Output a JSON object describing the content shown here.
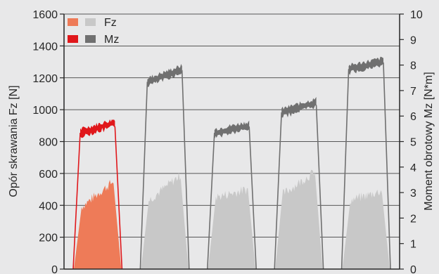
{
  "chart_data": {
    "type": "area",
    "title": "",
    "ylabel_left": "Opór skrawania Fz [N]",
    "ylabel_right": "Moment obrotowy Mz [N*m]",
    "ylim_left": [
      0,
      1600
    ],
    "ylim_right": [
      0,
      10
    ],
    "yticks_left": [
      "0",
      "200",
      "400",
      "600",
      "800",
      "1000",
      "1200",
      "1400",
      "1600"
    ],
    "yticks_right": [
      "0",
      "1",
      "2",
      "3",
      "4",
      "5",
      "6",
      "7",
      "8",
      "9",
      "10"
    ],
    "grid": "horizontal",
    "legend_position": "top-left",
    "legend": [
      {
        "label": "Fz",
        "swatch_colors": [
          "#ee7b58",
          "#c8c8c8"
        ]
      },
      {
        "label": "Mz",
        "swatch_colors": [
          "#e0171b",
          "#707070"
        ]
      }
    ],
    "tests": [
      {
        "highlight": true,
        "fz_range_N": [
          360,
          520
        ],
        "mz_range_Nm": [
          5.4,
          5.8
        ]
      },
      {
        "highlight": false,
        "fz_range_N": [
          400,
          560
        ],
        "mz_range_Nm": [
          7.4,
          7.9
        ]
      },
      {
        "highlight": false,
        "fz_range_N": [
          420,
          470
        ],
        "mz_range_Nm": [
          5.4,
          5.7
        ]
      },
      {
        "highlight": false,
        "fz_range_N": [
          440,
          580
        ],
        "mz_range_Nm": [
          6.2,
          6.6
        ]
      },
      {
        "highlight": false,
        "fz_range_N": [
          400,
          460
        ],
        "mz_range_Nm": [
          7.9,
          8.2
        ]
      }
    ],
    "colors": {
      "fz_highlight": "#ee7b58",
      "mz_highlight": "#e0171b",
      "fz_other": "#c8c8c8",
      "mz_other": "#707070",
      "background": "#e8e8e9",
      "grid": "#262626"
    }
  }
}
